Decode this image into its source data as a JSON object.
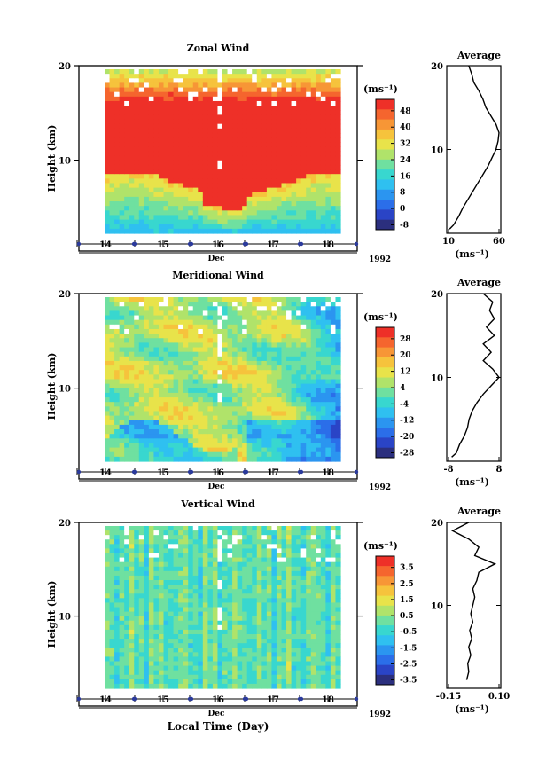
{
  "chart_data": [
    {
      "type": "heatmap",
      "title": "Zonal Wind",
      "ylabel": "Height (km)",
      "yticks": [
        10,
        20
      ],
      "ylim": [
        0,
        20
      ],
      "xtick_labels": [
        "14",
        "15",
        "16",
        "17",
        "18"
      ],
      "xunit_label": "Dec",
      "year_label": "1992",
      "colorbar": {
        "unit": "(ms⁻¹)",
        "ticks": [
          "48",
          "40",
          "32",
          "24",
          "16",
          "8",
          "0",
          "-8"
        ],
        "range": [
          -12,
          52
        ]
      },
      "profile": {
        "title": "Average",
        "xtick_labels": [
          "10",
          "60"
        ],
        "xlim": [
          10,
          60
        ],
        "xlabel": "(ms⁻¹)",
        "yticks": [
          10,
          20
        ],
        "heights": [
          0.5,
          1,
          2,
          3,
          4,
          5,
          6,
          7,
          8,
          9,
          10,
          11,
          12,
          13,
          14,
          15,
          16,
          17,
          18,
          19,
          20
        ],
        "values": [
          11,
          15,
          20,
          24,
          29,
          34,
          39,
          44,
          49,
          53,
          57,
          59,
          60,
          57,
          52,
          47,
          44,
          40,
          35,
          33,
          30
        ]
      }
    },
    {
      "type": "heatmap",
      "title": "Meridional Wind",
      "ylabel": "Height (km)",
      "yticks": [
        10,
        20
      ],
      "ylim": [
        0,
        20
      ],
      "xtick_labels": [
        "14",
        "15",
        "16",
        "17",
        "18"
      ],
      "xunit_label": "Dec",
      "year_label": "1992",
      "colorbar": {
        "unit": "(ms⁻¹)",
        "ticks": [
          "28",
          "20",
          "12",
          "4",
          "-4",
          "-12",
          "-20",
          "-28"
        ],
        "range": [
          -32,
          32
        ]
      },
      "profile": {
        "title": "Average",
        "xtick_labels": [
          "-8",
          "8"
        ],
        "xlim": [
          -8,
          8
        ],
        "xlabel": "(ms⁻¹)",
        "yticks": [
          10,
          20
        ],
        "heights": [
          0.5,
          1,
          2,
          3,
          4,
          5,
          6,
          7,
          8,
          9,
          10,
          11,
          12,
          13,
          14,
          15,
          16,
          17,
          18,
          19,
          20
        ],
        "values": [
          -7,
          -5.5,
          -4.5,
          -3,
          -2,
          -1.5,
          -0.5,
          1,
          3,
          5.5,
          8,
          6,
          3,
          5.5,
          3,
          6.5,
          4,
          6.5,
          5,
          6,
          3
        ]
      }
    },
    {
      "type": "heatmap",
      "title": "Vertical Wind",
      "ylabel": "Height (km)",
      "yticks": [
        10,
        20
      ],
      "ylim": [
        0,
        20
      ],
      "xtick_labels": [
        "14",
        "15",
        "16",
        "17",
        "18"
      ],
      "xunit_label": "Dec",
      "year_label": "1992",
      "xlabel": "Local Time (Day)",
      "colorbar": {
        "unit": "(ms⁻¹)",
        "ticks": [
          "3.5",
          "2.5",
          "1.5",
          "0.5",
          "-0.5",
          "-1.5",
          "-2.5",
          "-3.5"
        ],
        "range": [
          -4,
          4
        ]
      },
      "profile": {
        "title": "Average",
        "xtick_labels": [
          "-0.15",
          "0.10"
        ],
        "xlim": [
          -0.15,
          0.1
        ],
        "xlabel": "(ms⁻¹)",
        "yticks": [
          10,
          20
        ],
        "heights": [
          1,
          2,
          3,
          4,
          5,
          6,
          7,
          8,
          9,
          10,
          11,
          12,
          13,
          14,
          15,
          16,
          17,
          18,
          19,
          20
        ],
        "values": [
          -0.06,
          -0.05,
          -0.055,
          -0.04,
          -0.05,
          -0.035,
          -0.045,
          -0.03,
          -0.04,
          -0.03,
          -0.02,
          -0.03,
          -0.01,
          0.0,
          0.08,
          -0.02,
          0.0,
          -0.05,
          -0.13,
          -0.05
        ]
      }
    }
  ]
}
